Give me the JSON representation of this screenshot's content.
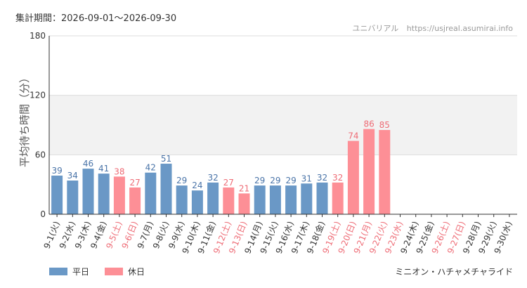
{
  "header": {
    "period_label": "集計期間：2026-09-01～2026-09-30",
    "site_name": "ユニバリアル",
    "site_url": "https://usjreal.asumirai.info"
  },
  "footer": {
    "legend": [
      {
        "label": "平日",
        "color": "#6a98c6"
      },
      {
        "label": "休日",
        "color": "#fd8f96"
      }
    ],
    "attraction": "ミニオン・ハチャメチャライド"
  },
  "colors": {
    "weekday": "#6a98c6",
    "weekday_text": "#4a74a8",
    "holiday": "#fd8f96",
    "holiday_text": "#ee6c76",
    "band": "#f2f2f2",
    "grid": "#dddddd"
  },
  "chart_data": {
    "type": "bar",
    "title": "",
    "xlabel": "",
    "ylabel": "平均待ち時間（分）",
    "ylim": [
      0,
      180
    ],
    "yticks": [
      0,
      60,
      120,
      180
    ],
    "shaded_band": [
      60,
      120
    ],
    "categories": [
      "9-1(火)",
      "9-2(水)",
      "9-3(木)",
      "9-4(金)",
      "9-5(土)",
      "9-6(日)",
      "9-7(月)",
      "9-8(火)",
      "9-9(水)",
      "9-10(木)",
      "9-11(金)",
      "9-12(土)",
      "9-13(日)",
      "9-14(月)",
      "9-15(火)",
      "9-16(水)",
      "9-17(木)",
      "9-18(金)",
      "9-19(土)",
      "9-20(日)",
      "9-21(月)",
      "9-22(火)",
      "9-23(水)",
      "9-24(木)",
      "9-25(金)",
      "9-26(土)",
      "9-27(日)",
      "9-28(月)",
      "9-29(火)",
      "9-30(水)"
    ],
    "day_types": [
      "平日",
      "平日",
      "平日",
      "平日",
      "休日",
      "休日",
      "平日",
      "平日",
      "平日",
      "平日",
      "平日",
      "休日",
      "休日",
      "平日",
      "平日",
      "平日",
      "平日",
      "平日",
      "休日",
      "休日",
      "休日",
      "休日",
      "休日",
      "平日",
      "平日",
      "休日",
      "休日",
      "平日",
      "平日",
      "平日"
    ],
    "values": [
      39,
      34,
      46,
      41,
      38,
      27,
      42,
      51,
      29,
      24,
      32,
      27,
      21,
      29,
      29,
      29,
      31,
      32,
      32,
      74,
      86,
      85,
      null,
      null,
      null,
      null,
      null,
      null,
      null,
      null
    ],
    "legend_position": "bottom-left",
    "grid": true
  }
}
